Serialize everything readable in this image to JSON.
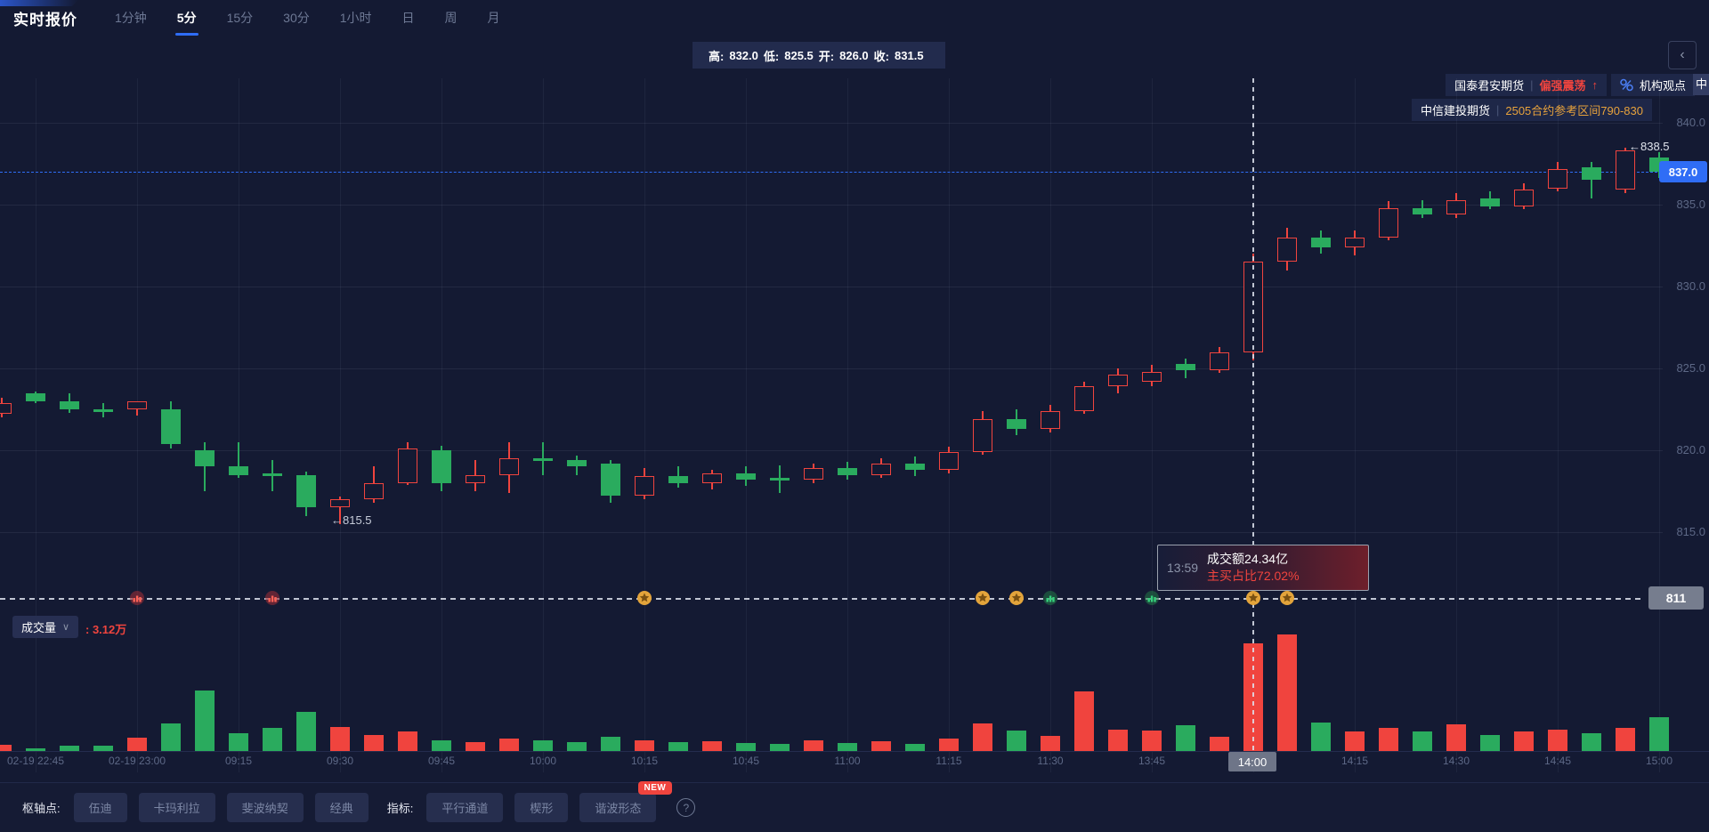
{
  "header": {
    "title": "实时报价",
    "timeframes": [
      {
        "label": "1分钟",
        "active": false
      },
      {
        "label": "5分",
        "active": true
      },
      {
        "label": "15分",
        "active": false
      },
      {
        "label": "30分",
        "active": false
      },
      {
        "label": "1小时",
        "active": false
      },
      {
        "label": "日",
        "active": false
      },
      {
        "label": "周",
        "active": false
      },
      {
        "label": "月",
        "active": false
      }
    ]
  },
  "ohlc_bar": {
    "items": [
      {
        "label": "高:",
        "value": "832.0"
      },
      {
        "label": "低:",
        "value": "825.5"
      },
      {
        "label": "开:",
        "value": "826.0"
      },
      {
        "label": "收:",
        "value": "831.5"
      }
    ]
  },
  "collapse_button": "‹",
  "institutions": {
    "row1": {
      "source": "国泰君安期货",
      "divider": "|",
      "view": "偏强震荡",
      "arrow": "↑",
      "icon": "scatter-percent-icon",
      "opinion_label": "机构观点",
      "partial_next": "中"
    },
    "row2": {
      "source": "中信建投期货",
      "divider": "|",
      "view": "2505合约参考区间790-830"
    }
  },
  "crosshair_readout": {
    "time_badge": "14:00",
    "price_badge": "811",
    "tooltip": {
      "time": "13:59",
      "line1": "成交额24.34亿",
      "line2": "主买占比72.02%"
    }
  },
  "volume_pane": {
    "name": "成交量",
    "chevron": "∨",
    "value": ": 3.12万"
  },
  "footer": {
    "pivot_label": "枢轴点:",
    "pivot_items": [
      "伍迪",
      "卡玛利拉",
      "斐波纳契",
      "经典"
    ],
    "indicator_label": "指标:",
    "indicator_items": [
      "平行通道",
      "楔形",
      "谐波形态"
    ],
    "new_badge": "NEW",
    "help": "?"
  },
  "chart_data": {
    "type": "candlestick_with_volume",
    "price_axis": {
      "ticks": [
        "840.0",
        "835.0",
        "830.0",
        "825.0",
        "820.0",
        "815.0"
      ],
      "tick_values": [
        840,
        835,
        830,
        825,
        820,
        815
      ],
      "last_price": 837.0,
      "last_price_label": "837.0",
      "crosshair_price": 811
    },
    "time_axis": {
      "labels": [
        {
          "i": 1,
          "label": "02-19 22:45"
        },
        {
          "i": 4,
          "label": "02-19 23:00"
        },
        {
          "i": 7,
          "label": "09:15"
        },
        {
          "i": 10,
          "label": "09:30"
        },
        {
          "i": 13,
          "label": "09:45"
        },
        {
          "i": 16,
          "label": "10:00"
        },
        {
          "i": 19,
          "label": "10:15"
        },
        {
          "i": 22,
          "label": "10:45"
        },
        {
          "i": 25,
          "label": "11:00"
        },
        {
          "i": 28,
          "label": "11:15"
        },
        {
          "i": 31,
          "label": "11:30"
        },
        {
          "i": 34,
          "label": "13:45"
        },
        {
          "i": 37,
          "label": "14:00"
        },
        {
          "i": 40,
          "label": "14:15"
        },
        {
          "i": 43,
          "label": "14:30"
        },
        {
          "i": 46,
          "label": "14:45"
        },
        {
          "i": 49,
          "label": "15:00"
        }
      ]
    },
    "crosshair_index": 37,
    "high_annotation": {
      "index": 48,
      "text": "←838.5",
      "price": 838.5
    },
    "low_annotation": {
      "index": 10,
      "text": "←815.5",
      "price": 815.5
    },
    "candles": [
      [
        "22:40",
        822.2,
        823.2,
        822.0,
        822.9,
        1800
      ],
      [
        "22:45",
        823.5,
        823.6,
        822.9,
        823.0,
        800
      ],
      [
        "22:50",
        823.0,
        823.5,
        822.3,
        822.5,
        1550
      ],
      [
        "22:55",
        822.5,
        822.9,
        822.0,
        822.4,
        1550
      ],
      [
        "23:00",
        822.5,
        823.0,
        822.1,
        823.0,
        3870
      ],
      [
        "09:05",
        822.5,
        823.0,
        820.1,
        820.4,
        8000
      ],
      [
        "09:10",
        820.0,
        820.5,
        817.5,
        819.0,
        17500
      ],
      [
        "09:15",
        819.0,
        820.5,
        818.3,
        818.5,
        5160
      ],
      [
        "09:20",
        818.6,
        819.4,
        817.5,
        818.4,
        6700
      ],
      [
        "09:25",
        818.5,
        818.7,
        816.0,
        816.5,
        11350
      ],
      [
        "09:30",
        816.5,
        817.2,
        815.5,
        817.0,
        6970
      ],
      [
        "09:35",
        817.0,
        819.0,
        816.8,
        818.0,
        4640
      ],
      [
        "09:40",
        818.0,
        820.5,
        817.9,
        820.1,
        5680
      ],
      [
        "09:45",
        820.0,
        820.3,
        817.5,
        818.0,
        3100
      ],
      [
        "09:50",
        818.0,
        819.4,
        817.5,
        818.5,
        2580
      ],
      [
        "09:55",
        818.5,
        820.5,
        817.4,
        819.5,
        3610
      ],
      [
        "10:00",
        819.5,
        820.5,
        818.5,
        819.4,
        3100
      ],
      [
        "10:05",
        819.4,
        819.7,
        818.5,
        819.0,
        2580
      ],
      [
        "10:10",
        819.2,
        819.4,
        816.8,
        817.2,
        4130
      ],
      [
        "10:15",
        817.2,
        818.9,
        817.0,
        818.4,
        3100
      ],
      [
        "10:35",
        818.4,
        819.0,
        817.7,
        818.0,
        2580
      ],
      [
        "10:40",
        818.0,
        818.8,
        817.6,
        818.6,
        2840
      ],
      [
        "10:45",
        818.6,
        819.0,
        817.8,
        818.2,
        2320
      ],
      [
        "10:50",
        818.3,
        819.1,
        817.4,
        818.2,
        2060
      ],
      [
        "10:55",
        818.2,
        819.2,
        818.0,
        818.9,
        3100
      ],
      [
        "11:00",
        818.9,
        819.3,
        818.2,
        818.5,
        2320
      ],
      [
        "11:05",
        818.5,
        819.5,
        818.3,
        819.2,
        2840
      ],
      [
        "11:10",
        819.2,
        819.6,
        818.4,
        818.8,
        2060
      ],
      [
        "11:15",
        818.8,
        820.2,
        818.6,
        819.9,
        3610
      ],
      [
        "11:20",
        819.9,
        822.4,
        819.7,
        821.9,
        8000
      ],
      [
        "11:25",
        821.9,
        822.5,
        820.9,
        821.3,
        5930
      ],
      [
        "11:30",
        821.3,
        822.8,
        821.1,
        822.4,
        4390
      ],
      [
        "13:35",
        822.4,
        824.2,
        822.2,
        823.9,
        17280
      ],
      [
        "13:40",
        823.9,
        825.0,
        823.5,
        824.6,
        6190
      ],
      [
        "13:45",
        824.2,
        825.2,
        823.9,
        824.8,
        5930
      ],
      [
        "13:50",
        825.3,
        825.6,
        824.4,
        824.9,
        7480
      ],
      [
        "13:55",
        824.9,
        826.3,
        824.7,
        826.0,
        4130
      ],
      [
        "14:00",
        826.0,
        832.0,
        825.5,
        831.5,
        31200
      ],
      [
        "14:05",
        831.5,
        833.6,
        831.0,
        833.0,
        33800
      ],
      [
        "14:10",
        833.0,
        833.4,
        832.0,
        832.4,
        8260
      ],
      [
        "14:15",
        832.4,
        833.4,
        831.9,
        833.0,
        5680
      ],
      [
        "14:20",
        833.0,
        835.2,
        832.8,
        834.8,
        6700
      ],
      [
        "14:25",
        834.8,
        835.3,
        834.2,
        834.4,
        5680
      ],
      [
        "14:30",
        834.4,
        835.7,
        834.2,
        835.3,
        7740
      ],
      [
        "14:35",
        835.4,
        835.8,
        834.7,
        834.9,
        4640
      ],
      [
        "14:40",
        834.9,
        836.3,
        834.7,
        835.9,
        5680
      ],
      [
        "14:45",
        836.0,
        837.6,
        835.8,
        837.2,
        6190
      ],
      [
        "14:50",
        837.3,
        837.6,
        835.4,
        836.5,
        5160
      ],
      [
        "14:55",
        835.9,
        838.5,
        835.7,
        838.3,
        6700
      ],
      [
        "15:00",
        837.9,
        838.2,
        836.6,
        837.0,
        9800
      ]
    ],
    "markers": [
      {
        "i": 4,
        "kind": "red"
      },
      {
        "i": 8,
        "kind": "red"
      },
      {
        "i": 19,
        "kind": "gold"
      },
      {
        "i": 29,
        "kind": "gold"
      },
      {
        "i": 30,
        "kind": "gold"
      },
      {
        "i": 31,
        "kind": "green"
      },
      {
        "i": 34,
        "kind": "green"
      },
      {
        "i": 37,
        "kind": "gold"
      },
      {
        "i": 38,
        "kind": "gold"
      },
      {
        "i": 49,
        "kind": "gold"
      }
    ],
    "colors": {
      "up_red": "#f0443e",
      "down_green": "#2aab5e",
      "accent_blue": "#2f6df6",
      "badge_gray": "#6e7588",
      "axis_text": "#5d6886",
      "background": "#141a33",
      "panel": "#222b4d",
      "orange": "#e7a23c",
      "marker_gold": "#e3a43b"
    }
  }
}
